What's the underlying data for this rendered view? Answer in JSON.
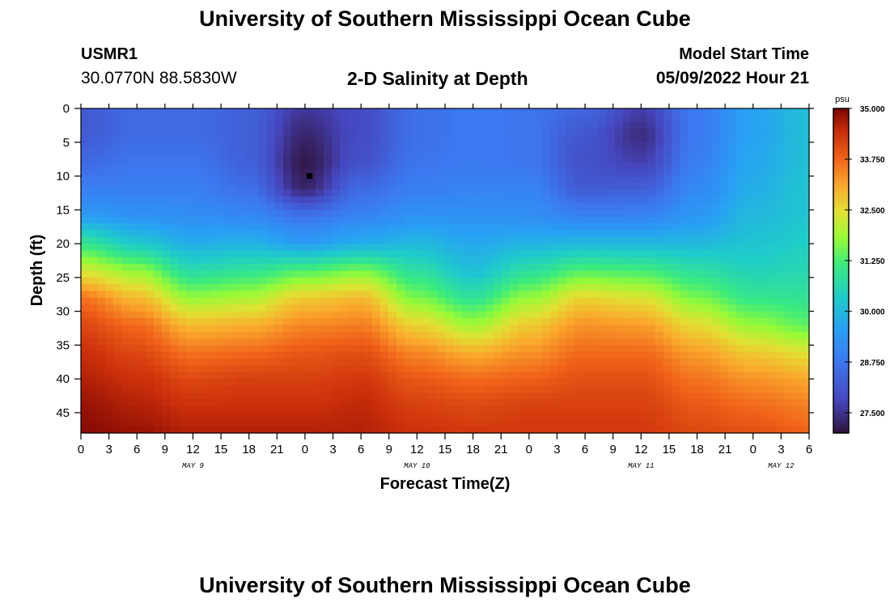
{
  "header": {
    "title": "University of Southern Mississippi Ocean Cube",
    "station_id": "USMR1",
    "station_coords": "30.0770N  88.5830W",
    "plot_title": "2-D Salinity at Depth",
    "model_start_label": "Model Start Time",
    "model_start_value": "05/09/2022 Hour 21"
  },
  "footer": {
    "title": "University of Southern Mississippi Ocean Cube"
  },
  "chart_data": {
    "type": "heatmap",
    "title": "2-D Salinity at Depth",
    "xlabel": "Forecast Time(Z)",
    "ylabel": "Depth (ft)",
    "x_start_hour": 0,
    "x_end_hour": 78,
    "x_tick_labels": [
      "0",
      "3",
      "6",
      "9",
      "12",
      "15",
      "18",
      "21",
      "0",
      "3",
      "6",
      "9",
      "12",
      "15",
      "18",
      "21",
      "0",
      "3",
      "6",
      "9",
      "12",
      "15",
      "18",
      "21",
      "0",
      "3",
      "6"
    ],
    "date_labels": [
      {
        "label": "MAY 9",
        "hour": 12
      },
      {
        "label": "MAY 10",
        "hour": 36
      },
      {
        "label": "MAY 11",
        "hour": 60
      },
      {
        "label": "MAY 12",
        "hour": 75
      }
    ],
    "y_ticks": [
      0,
      5,
      10,
      15,
      20,
      25,
      30,
      35,
      40,
      45
    ],
    "ylim": [
      0,
      48
    ],
    "y_inverted": true,
    "marker": {
      "hour": 24.5,
      "depth": 10
    },
    "colorbar": {
      "unit": "psu",
      "min": 27.0,
      "max": 35.0,
      "tick_labels": [
        "35.000",
        "33.750",
        "32.500",
        "31.250",
        "30.000",
        "28.750",
        "27.500"
      ],
      "tick_values": [
        35.0,
        33.75,
        32.5,
        31.25,
        30.0,
        28.75,
        27.5
      ]
    },
    "profile_depths_ft": [
      0,
      4,
      8,
      12,
      16,
      20,
      24,
      28,
      32,
      36,
      40,
      44,
      48
    ],
    "profiles": [
      {
        "hour": 0,
        "values": [
          28.2,
          28.2,
          28.5,
          28.9,
          29.5,
          31.0,
          32.3,
          33.6,
          34.1,
          34.4,
          34.6,
          34.8,
          34.9
        ]
      },
      {
        "hour": 6,
        "values": [
          28.5,
          28.5,
          28.7,
          28.9,
          29.3,
          30.3,
          31.8,
          32.9,
          33.7,
          34.1,
          34.4,
          34.6,
          34.8
        ]
      },
      {
        "hour": 12,
        "values": [
          28.5,
          28.5,
          28.7,
          28.9,
          29.2,
          29.8,
          30.7,
          31.8,
          32.9,
          33.6,
          34.1,
          34.4,
          34.6
        ]
      },
      {
        "hour": 18,
        "values": [
          28.3,
          28.3,
          28.3,
          28.6,
          29.1,
          29.9,
          30.9,
          32.0,
          33.0,
          33.7,
          34.2,
          34.4,
          34.6
        ]
      },
      {
        "hour": 24,
        "values": [
          27.6,
          27.3,
          27.1,
          27.3,
          28.7,
          29.5,
          31.3,
          32.7,
          33.4,
          33.9,
          34.2,
          34.4,
          34.6
        ]
      },
      {
        "hour": 30,
        "values": [
          27.9,
          27.9,
          28.0,
          28.5,
          29.0,
          29.8,
          31.6,
          32.9,
          33.5,
          34.0,
          34.3,
          34.5,
          34.6
        ]
      },
      {
        "hour": 36,
        "values": [
          28.6,
          28.6,
          28.7,
          28.9,
          29.3,
          30.0,
          30.8,
          31.6,
          32.6,
          33.4,
          33.9,
          34.2,
          34.4
        ]
      },
      {
        "hour": 42,
        "values": [
          28.8,
          28.8,
          28.8,
          29.0,
          29.3,
          29.7,
          30.1,
          30.9,
          31.9,
          33.0,
          33.7,
          34.1,
          34.3
        ]
      },
      {
        "hour": 48,
        "values": [
          28.7,
          28.7,
          28.7,
          29.0,
          29.2,
          29.9,
          30.8,
          31.8,
          32.7,
          33.3,
          33.8,
          34.2,
          34.3
        ]
      },
      {
        "hour": 54,
        "values": [
          28.4,
          28.1,
          28.0,
          28.2,
          29.0,
          30.0,
          31.3,
          32.6,
          33.3,
          33.7,
          34.0,
          34.2,
          34.3
        ]
      },
      {
        "hour": 60,
        "values": [
          27.7,
          27.4,
          27.7,
          28.3,
          29.0,
          30.0,
          31.2,
          32.4,
          33.2,
          33.7,
          34.0,
          34.2,
          34.3
        ]
      },
      {
        "hour": 66,
        "values": [
          28.8,
          28.8,
          28.9,
          29.1,
          29.4,
          30.0,
          30.8,
          31.6,
          32.5,
          33.2,
          33.6,
          33.9,
          34.1
        ]
      },
      {
        "hour": 72,
        "values": [
          29.6,
          29.6,
          29.7,
          29.8,
          30.0,
          30.2,
          30.5,
          31.0,
          31.8,
          32.7,
          33.3,
          33.7,
          34.0
        ]
      },
      {
        "hour": 78,
        "values": [
          30.1,
          30.1,
          30.1,
          30.2,
          30.2,
          30.4,
          30.6,
          30.9,
          31.4,
          32.4,
          33.1,
          33.5,
          33.8
        ]
      }
    ]
  }
}
